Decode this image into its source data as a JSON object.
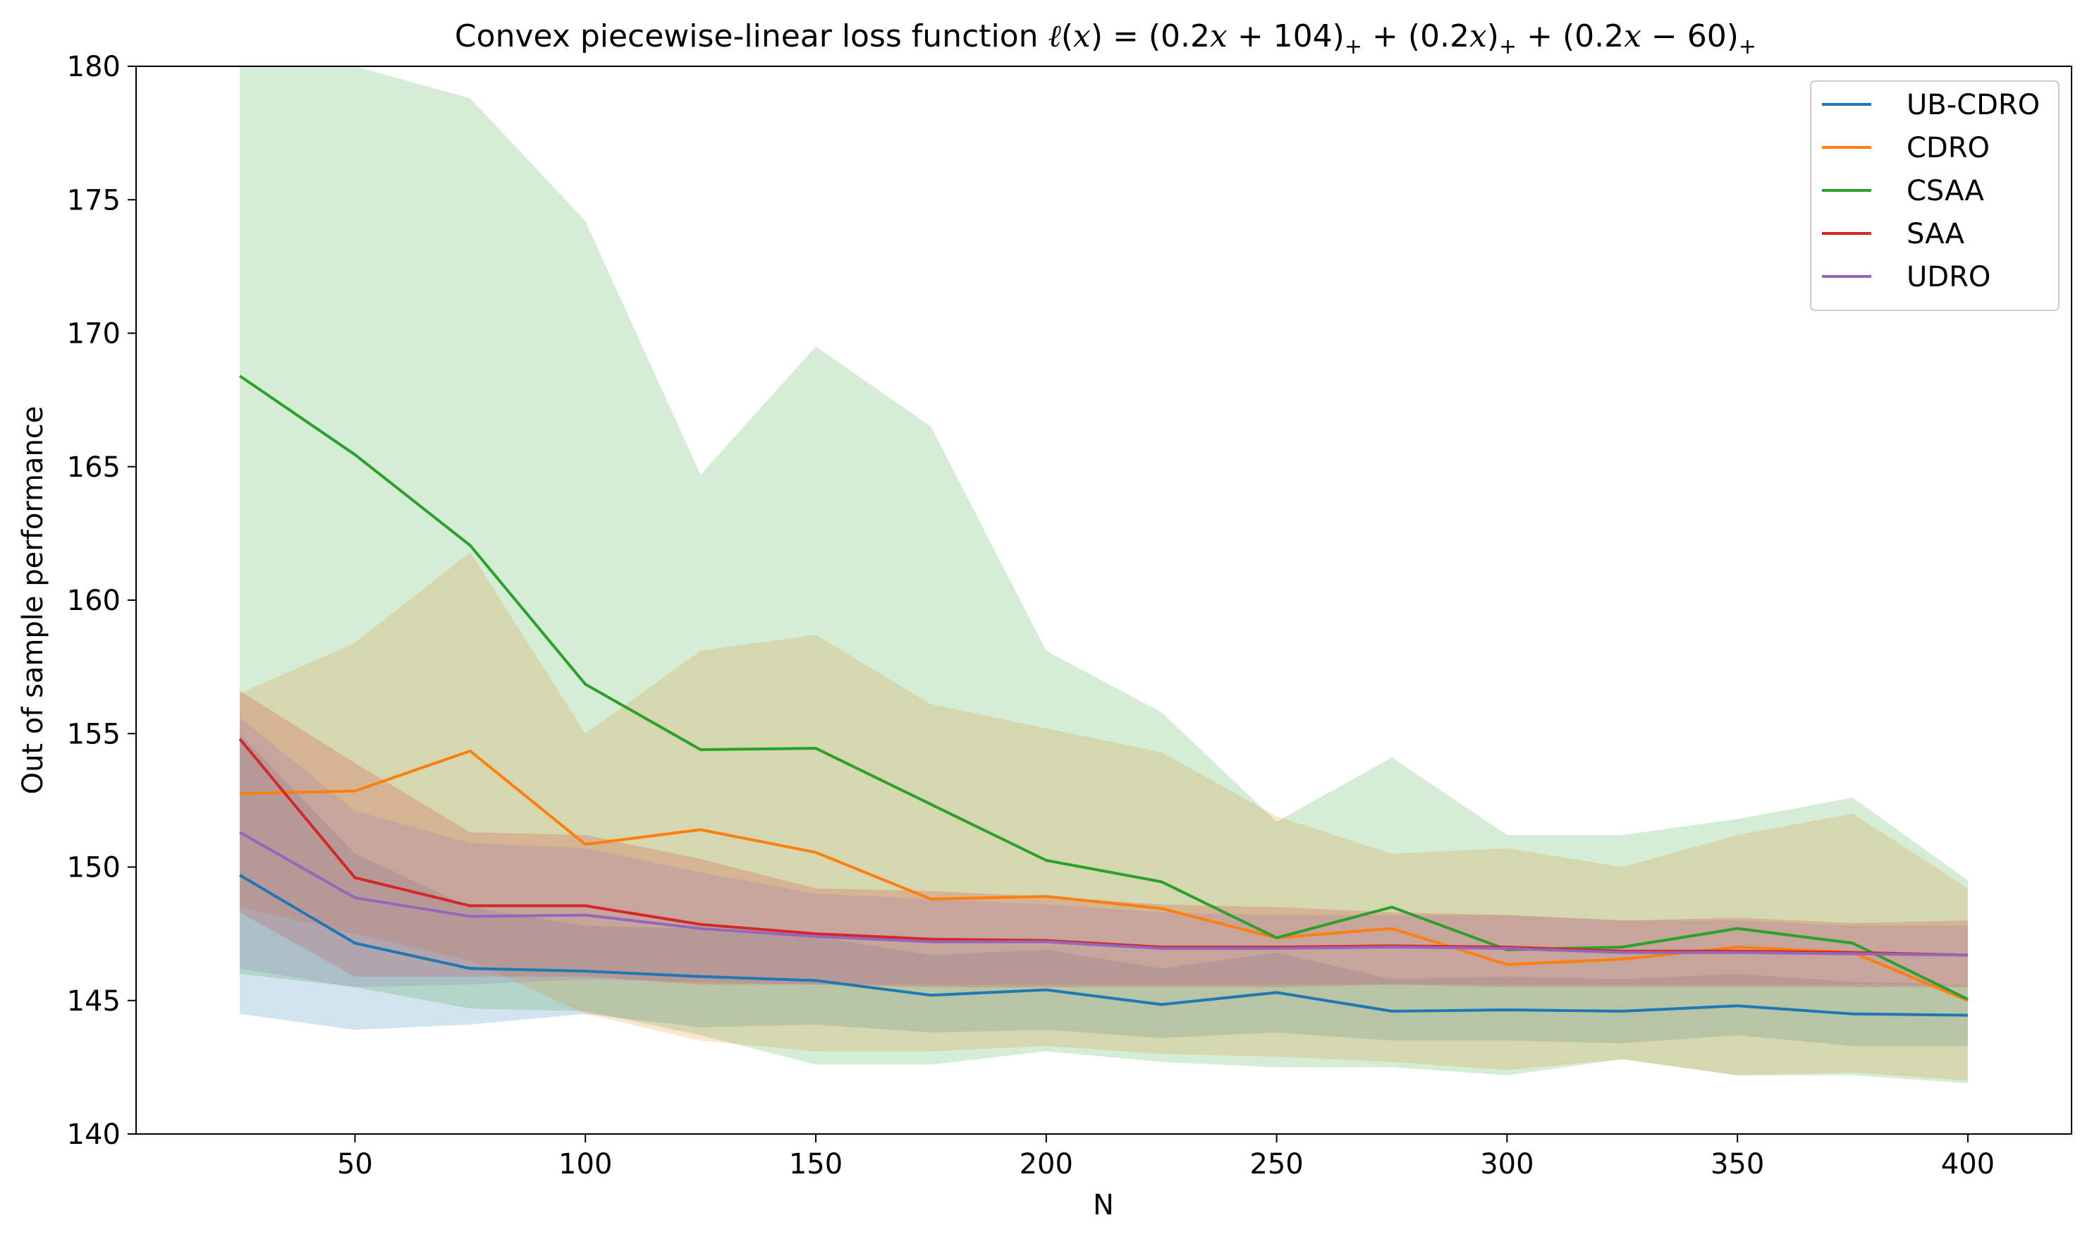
{
  "chart_data": {
    "type": "line",
    "title": "Convex piecewise-linear loss function ℓ(x) = (0.2x + 104)₊ + (0.2x)₊ + (0.2x − 60)₊",
    "xlabel": "N",
    "ylabel": "Out of sample performance",
    "xlim": [
      2.5,
      422.5
    ],
    "ylim": [
      140,
      180
    ],
    "xticks": [
      50,
      100,
      150,
      200,
      250,
      300,
      350,
      400
    ],
    "yticks": [
      140,
      145,
      150,
      155,
      160,
      165,
      170,
      175,
      180
    ],
    "grid": false,
    "legend_position": "top-right",
    "x": [
      25,
      50,
      75,
      100,
      125,
      150,
      175,
      200,
      225,
      250,
      275,
      300,
      325,
      350,
      375,
      400
    ],
    "series": [
      {
        "name": "UB-CDRO",
        "color": "#1f77b4",
        "values": [
          149.7,
          147.15,
          146.2,
          146.1,
          145.9,
          145.75,
          145.2,
          145.4,
          144.85,
          145.3,
          144.6,
          144.65,
          144.6,
          144.8,
          144.5,
          144.45
        ],
        "lower": [
          144.5,
          143.9,
          144.1,
          144.5,
          144.0,
          144.1,
          143.8,
          143.9,
          143.6,
          143.8,
          143.5,
          143.5,
          143.4,
          143.7,
          143.3,
          143.3
        ],
        "upper": [
          155.0,
          150.5,
          148.5,
          147.8,
          147.7,
          147.4,
          146.7,
          146.9,
          146.2,
          146.8,
          145.8,
          145.9,
          145.8,
          146.0,
          145.7,
          145.6
        ]
      },
      {
        "name": "CDRO",
        "color": "#ff7f0e",
        "values": [
          152.75,
          152.85,
          154.35,
          150.85,
          151.4,
          150.55,
          148.8,
          148.9,
          148.45,
          147.35,
          147.7,
          146.35,
          146.55,
          147.0,
          146.8,
          145.0
        ],
        "lower": [
          148.5,
          147.5,
          146.5,
          144.5,
          143.5,
          143.1,
          143.1,
          143.3,
          143.0,
          142.9,
          142.7,
          142.4,
          142.8,
          142.2,
          142.3,
          142.0
        ],
        "upper": [
          156.5,
          158.4,
          161.8,
          155.0,
          158.1,
          158.7,
          156.1,
          155.2,
          154.3,
          151.9,
          150.5,
          150.7,
          150.0,
          151.2,
          152.0,
          149.2
        ]
      },
      {
        "name": "CSAA",
        "color": "#2ca02c",
        "values": [
          168.4,
          165.45,
          162.05,
          156.85,
          154.4,
          154.45,
          152.35,
          150.25,
          149.45,
          147.35,
          148.5,
          146.9,
          147.0,
          147.7,
          147.15,
          145.05
        ],
        "lower": [
          146.0,
          145.5,
          144.7,
          144.6,
          143.7,
          142.6,
          142.6,
          143.1,
          142.7,
          142.5,
          142.5,
          142.2,
          142.8,
          142.2,
          142.2,
          141.9
        ],
        "upper": [
          180.0,
          180.0,
          178.8,
          174.2,
          164.7,
          169.5,
          166.5,
          158.1,
          155.8,
          151.7,
          154.1,
          151.2,
          151.2,
          151.8,
          152.6,
          149.5
        ]
      },
      {
        "name": "SAA",
        "color": "#d62728",
        "values": [
          154.8,
          149.6,
          148.55,
          148.55,
          147.85,
          147.5,
          147.3,
          147.25,
          147.0,
          147.0,
          147.05,
          147.0,
          146.85,
          146.85,
          146.8,
          146.7
        ],
        "lower": [
          148.3,
          145.9,
          145.9,
          145.9,
          145.6,
          145.6,
          145.5,
          145.5,
          145.5,
          145.5,
          145.6,
          145.5,
          145.5,
          145.5,
          145.5,
          145.5
        ],
        "upper": [
          156.6,
          153.9,
          151.3,
          151.2,
          150.3,
          149.2,
          149.1,
          148.9,
          148.6,
          148.5,
          148.3,
          148.2,
          148.0,
          148.1,
          147.9,
          148.0
        ]
      },
      {
        "name": "UDRO",
        "color": "#9467bd",
        "values": [
          151.3,
          148.85,
          148.15,
          148.2,
          147.7,
          147.4,
          147.2,
          147.2,
          146.95,
          146.95,
          147.0,
          146.95,
          146.8,
          146.8,
          146.75,
          146.7
        ],
        "lower": [
          146.2,
          145.5,
          145.6,
          145.8,
          145.7,
          145.6,
          145.6,
          145.6,
          145.6,
          145.6,
          145.6,
          145.6,
          145.6,
          145.6,
          145.6,
          145.6
        ],
        "upper": [
          155.6,
          152.1,
          150.9,
          150.7,
          149.8,
          149.0,
          148.8,
          148.6,
          148.3,
          148.2,
          148.2,
          148.2,
          148.0,
          148.0,
          147.8,
          147.8
        ]
      }
    ]
  }
}
